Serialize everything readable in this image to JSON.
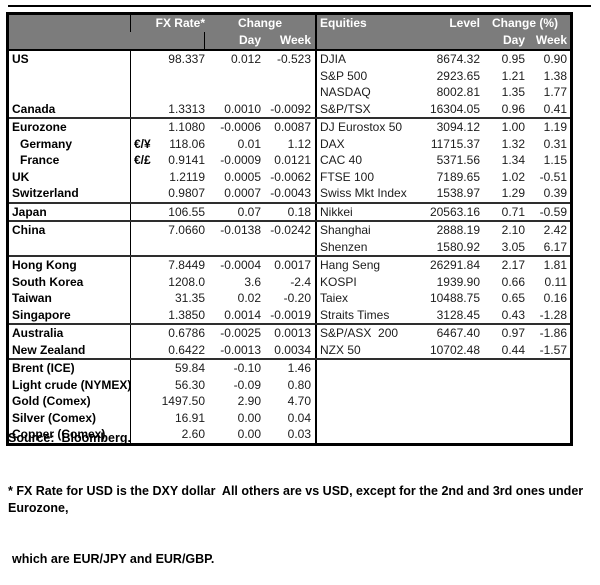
{
  "header": {
    "fx_rate": "FX Rate*",
    "fx_change": "Change",
    "fx_day": "Day",
    "fx_week": "Week",
    "eq_title": "Equities",
    "eq_level": "Level",
    "eq_change": "Change (%)",
    "eq_day": "Day",
    "eq_week": "Week"
  },
  "colors": {
    "header_bg": "#7c7c7c",
    "header_text": "#ffffff",
    "border": "#000000"
  },
  "rows": [
    {
      "name": "US",
      "pair": "",
      "rate": "98.337",
      "day": "0.012",
      "week": "-0.523",
      "eq_name": "DJIA",
      "level": "8674.32",
      "eq_day": "0.95",
      "eq_week": "0.90",
      "sep": false,
      "indent": false
    },
    {
      "name": "",
      "pair": "",
      "rate": "",
      "day": "",
      "week": "",
      "eq_name": "S&P 500",
      "level": "2923.65",
      "eq_day": "1.21",
      "eq_week": "1.38",
      "sep": false,
      "indent": false
    },
    {
      "name": "",
      "pair": "",
      "rate": "",
      "day": "",
      "week": "",
      "eq_name": "NASDAQ",
      "level": "8002.81",
      "eq_day": "1.35",
      "eq_week": "1.77",
      "sep": false,
      "indent": false
    },
    {
      "name": "Canada",
      "pair": "",
      "rate": "1.3313",
      "day": "0.0010",
      "week": "-0.0092",
      "eq_name": "S&P/TSX",
      "level": "16304.05",
      "eq_day": "0.96",
      "eq_week": "0.41",
      "sep": false,
      "indent": false
    },
    {
      "name": "Eurozone",
      "pair": "",
      "rate": "1.1080",
      "day": "-0.0006",
      "week": "0.0087",
      "eq_name": "DJ Eurostox 50",
      "level": "3094.12",
      "eq_day": "1.00",
      "eq_week": "1.19",
      "sep": true,
      "indent": false
    },
    {
      "name": "Germany",
      "pair": "€/¥",
      "rate": "118.06",
      "day": "0.01",
      "week": "1.12",
      "eq_name": "DAX",
      "level": "11715.37",
      "eq_day": "1.32",
      "eq_week": "0.31",
      "sep": false,
      "indent": true
    },
    {
      "name": "France",
      "pair": "€/£",
      "rate": "0.9141",
      "day": "-0.0009",
      "week": "0.0121",
      "eq_name": "CAC 40",
      "level": "5371.56",
      "eq_day": "1.34",
      "eq_week": "1.15",
      "sep": false,
      "indent": true
    },
    {
      "name": "UK",
      "pair": "",
      "rate": "1.2119",
      "day": "0.0005",
      "week": "-0.0062",
      "eq_name": "FTSE 100",
      "level": "7189.65",
      "eq_day": "1.02",
      "eq_week": "-0.51",
      "sep": false,
      "indent": false
    },
    {
      "name": "Switzerland",
      "pair": "",
      "rate": "0.9807",
      "day": "0.0007",
      "week": "-0.0043",
      "eq_name": "Swiss Mkt Index",
      "level": "1538.97",
      "eq_day": "1.29",
      "eq_week": "0.39",
      "sep": false,
      "indent": false
    },
    {
      "name": "Japan",
      "pair": "",
      "rate": "106.55",
      "day": "0.07",
      "week": "0.18",
      "eq_name": "Nikkei",
      "level": "20563.16",
      "eq_day": "0.71",
      "eq_week": "-0.59",
      "sep": true,
      "indent": false
    },
    {
      "name": "China",
      "pair": "",
      "rate": "7.0660",
      "day": "-0.0138",
      "week": "-0.0242",
      "eq_name": "Shanghai",
      "level": "2888.19",
      "eq_day": "2.10",
      "eq_week": "2.42",
      "sep": true,
      "indent": false
    },
    {
      "name": "",
      "pair": "",
      "rate": "",
      "day": "",
      "week": "",
      "eq_name": "Shenzen",
      "level": "1580.92",
      "eq_day": "3.05",
      "eq_week": "6.17",
      "sep": false,
      "indent": false
    },
    {
      "name": "Hong Kong",
      "pair": "",
      "rate": "7.8449",
      "day": "-0.0004",
      "week": "0.0017",
      "eq_name": "Hang Seng",
      "level": "26291.84",
      "eq_day": "2.17",
      "eq_week": "1.81",
      "sep": true,
      "indent": false
    },
    {
      "name": "South Korea",
      "pair": "",
      "rate": "1208.0",
      "day": "3.6",
      "week": "-2.4",
      "eq_name": "KOSPI",
      "level": "1939.90",
      "eq_day": "0.66",
      "eq_week": "0.11",
      "sep": false,
      "indent": false
    },
    {
      "name": "Taiwan",
      "pair": "",
      "rate": "31.35",
      "day": "0.02",
      "week": "-0.20",
      "eq_name": "Taiex",
      "level": "10488.75",
      "eq_day": "0.65",
      "eq_week": "0.16",
      "sep": false,
      "indent": false
    },
    {
      "name": "Singapore",
      "pair": "",
      "rate": "1.3850",
      "day": "0.0014",
      "week": "-0.0019",
      "eq_name": "Straits Times",
      "level": "3128.45",
      "eq_day": "0.43",
      "eq_week": "-1.28",
      "sep": false,
      "indent": false
    },
    {
      "name": "Australia",
      "pair": "",
      "rate": "0.6786",
      "day": "-0.0025",
      "week": "0.0013",
      "eq_name": "S&P/ASX  200",
      "level": "6467.40",
      "eq_day": "0.97",
      "eq_week": "-1.86",
      "sep": true,
      "indent": false
    },
    {
      "name": "New Zealand",
      "pair": "",
      "rate": "0.6422",
      "day": "-0.0013",
      "week": "0.0034",
      "eq_name": "NZX 50",
      "level": "10702.48",
      "eq_day": "0.44",
      "eq_week": "-1.57",
      "sep": false,
      "indent": false
    },
    {
      "name": "Brent (ICE)",
      "pair": "",
      "rate": "59.84",
      "day": "-0.10",
      "week": "1.46",
      "eq_name": "",
      "level": "",
      "eq_day": "",
      "eq_week": "",
      "sep": true,
      "indent": false
    },
    {
      "name": "Light crude (NYMEX)",
      "pair": "",
      "rate": "56.30",
      "day": "-0.09",
      "week": "0.80",
      "eq_name": "",
      "level": "",
      "eq_day": "",
      "eq_week": "",
      "sep": false,
      "indent": false
    },
    {
      "name": "Gold (Comex)",
      "pair": "",
      "rate": "1497.50",
      "day": "2.90",
      "week": "4.70",
      "eq_name": "",
      "level": "",
      "eq_day": "",
      "eq_week": "",
      "sep": false,
      "indent": false
    },
    {
      "name": "Silver (Comex)",
      "pair": "",
      "rate": "16.91",
      "day": "0.00",
      "week": "0.04",
      "eq_name": "",
      "level": "",
      "eq_day": "",
      "eq_week": "",
      "sep": false,
      "indent": false
    },
    {
      "name": "Copper (Comex)",
      "pair": "",
      "rate": "2.60",
      "day": "0.00",
      "week": "0.03",
      "eq_name": "",
      "level": "",
      "eq_day": "",
      "eq_week": "",
      "sep": false,
      "indent": false
    }
  ],
  "footer": {
    "source": "Source:  Bloomberg.",
    "footnote_line1": "* FX Rate for USD is the DXY dollar  All others are vs USD, except for the 2nd and 3rd ones under Eurozone,",
    "footnote_line2": "which are EUR/JPY and EUR/GBP."
  }
}
